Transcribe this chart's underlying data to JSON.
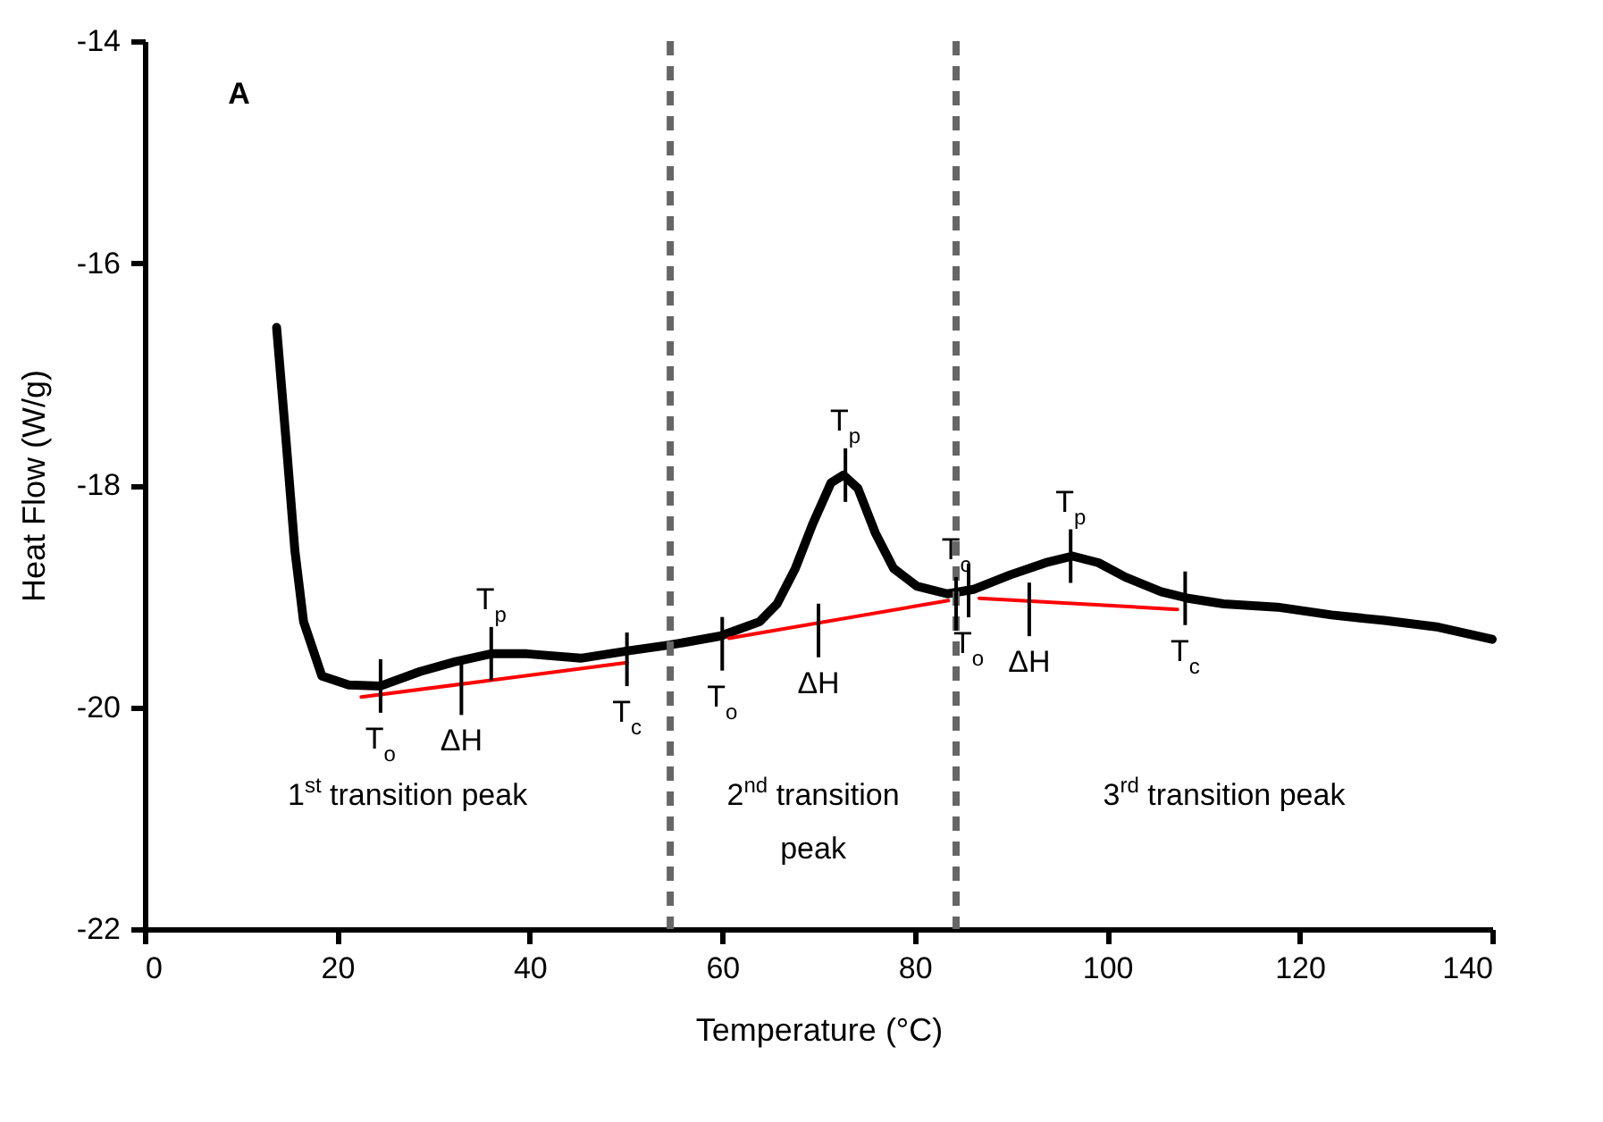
{
  "chart_data": {
    "type": "line",
    "xlabel": "Temperature (°C)",
    "ylabel": "Heat Flow (W/g)",
    "xlim": [
      0,
      140
    ],
    "xticks": [
      0,
      20,
      40,
      60,
      80,
      100,
      120,
      140
    ],
    "ylim": [
      -22,
      -14
    ],
    "yticks": [
      -22,
      -20,
      -18,
      -16,
      -14
    ],
    "series": [
      {
        "color": "#000000",
        "x": [
          13.7,
          14.7,
          15.6,
          16.5,
          18.4,
          21.2,
          24.5,
          28.6,
          32.3,
          36.0,
          39.7,
          45.3,
          50.5,
          54.6,
          59.8,
          63.9,
          65.7,
          67.6,
          69.4,
          71.3,
          72.6,
          74.1,
          75.9,
          77.8,
          80.2,
          83.4,
          86.1,
          89.9,
          93.6,
          96.4,
          99.1,
          101.9,
          105.6,
          108.4,
          112.1,
          117.7,
          123.3,
          128.8,
          134.4,
          140.0
        ],
        "values": [
          -16.58,
          -17.62,
          -18.59,
          -19.23,
          -19.72,
          -19.8,
          -19.81,
          -19.68,
          -19.59,
          -19.52,
          -19.52,
          -19.56,
          -19.49,
          -19.44,
          -19.36,
          -19.23,
          -19.07,
          -18.75,
          -18.35,
          -17.98,
          -17.91,
          -18.03,
          -18.43,
          -18.75,
          -18.91,
          -18.98,
          -18.94,
          -18.81,
          -18.7,
          -18.64,
          -18.7,
          -18.83,
          -18.96,
          -19.02,
          -19.07,
          -19.1,
          -19.17,
          -19.22,
          -19.28,
          -19.39
        ]
      },
      {
        "color": "#ff0000",
        "x": [
          22.5,
          50.1
        ],
        "values": [
          -19.91,
          -19.6
        ]
      },
      {
        "color": "#ff0000",
        "x": [
          60.7,
          83.5
        ],
        "values": [
          -19.38,
          -19.04
        ]
      },
      {
        "color": "#ff0000",
        "x": [
          86.7,
          107.3
        ],
        "values": [
          -19.02,
          -19.12
        ]
      }
    ],
    "ref_lines": [
      {
        "axis": "x",
        "value": 54.6,
        "color": "#666666",
        "line_style": "dashed"
      },
      {
        "axis": "x",
        "value": 84.3,
        "color": "#666666",
        "line_style": "dashed"
      }
    ],
    "annotations": [
      "A",
      "1$^{st}$ transition peak",
      "2$^{nd}$ transition\npeak",
      "3$^{rd}$ transition peak",
      {
        "text": "T$_{o}$",
        "x": 24.5,
        "y": -19.81
      },
      {
        "text": "ΔH",
        "x": 32.9,
        "y": -19.83
      },
      {
        "text": "T$_{p}$",
        "x": 36.0,
        "y": -19.52
      },
      {
        "text": "T$_{c}$",
        "x": 50.1,
        "y": -19.57
      },
      {
        "text": "T$_{o}$",
        "x": 60.0,
        "y": -19.43
      },
      {
        "text": "ΔH",
        "x": 70.0,
        "y": -19.31
      },
      {
        "text": "T$_{p}$",
        "x": 72.8,
        "y": -17.91
      },
      {
        "text": "T$_{c}$",
        "x": 84.3,
        "y": -19.07
      },
      {
        "text": "T$_{o}$",
        "x": 85.6,
        "y": -18.95
      },
      {
        "text": "ΔH",
        "x": 91.9,
        "y": -19.12
      },
      {
        "text": "T$_{p}$",
        "x": 96.2,
        "y": -18.64
      },
      {
        "text": "T$_{c}$",
        "x": 108.1,
        "y": -19.02
      }
    ]
  }
}
